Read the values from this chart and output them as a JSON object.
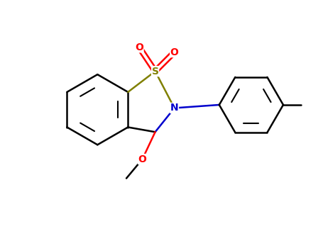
{
  "background_color": "#ffffff",
  "bond_color": "#000000",
  "sulfur_color": "#808000",
  "nitrogen_color": "#0000cd",
  "oxygen_color": "#ff0000",
  "carbon_color": "#000000",
  "fig_width": 4.55,
  "fig_height": 3.5,
  "dpi": 100,
  "xlim": [
    0,
    10
  ],
  "ylim": [
    0,
    7.7
  ]
}
